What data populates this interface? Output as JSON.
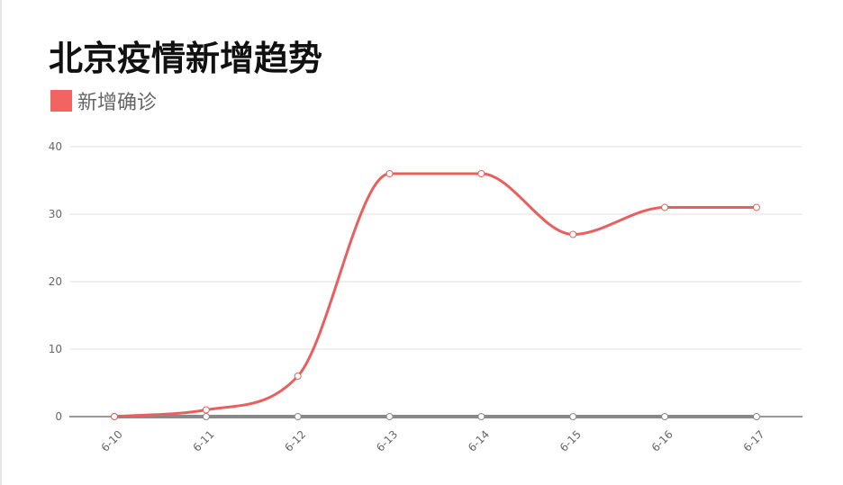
{
  "chart_data": {
    "type": "line",
    "title": "北京疫情新增趋势",
    "categories": [
      "6-10",
      "6-11",
      "6-12",
      "6-13",
      "6-14",
      "6-15",
      "6-16",
      "6-17"
    ],
    "series": [
      {
        "name": "新增确诊",
        "values": [
          0,
          1,
          6,
          36,
          36,
          27,
          31,
          31
        ],
        "color": "#e8605e"
      },
      {
        "values": [
          0,
          0,
          0,
          0,
          0,
          0,
          0,
          0
        ],
        "color": "#888888"
      }
    ],
    "ylim": [
      0,
      40
    ],
    "yticks": [
      0,
      10,
      20,
      30,
      40
    ],
    "grid": true,
    "legend_position": "top-left",
    "smooth": true
  }
}
